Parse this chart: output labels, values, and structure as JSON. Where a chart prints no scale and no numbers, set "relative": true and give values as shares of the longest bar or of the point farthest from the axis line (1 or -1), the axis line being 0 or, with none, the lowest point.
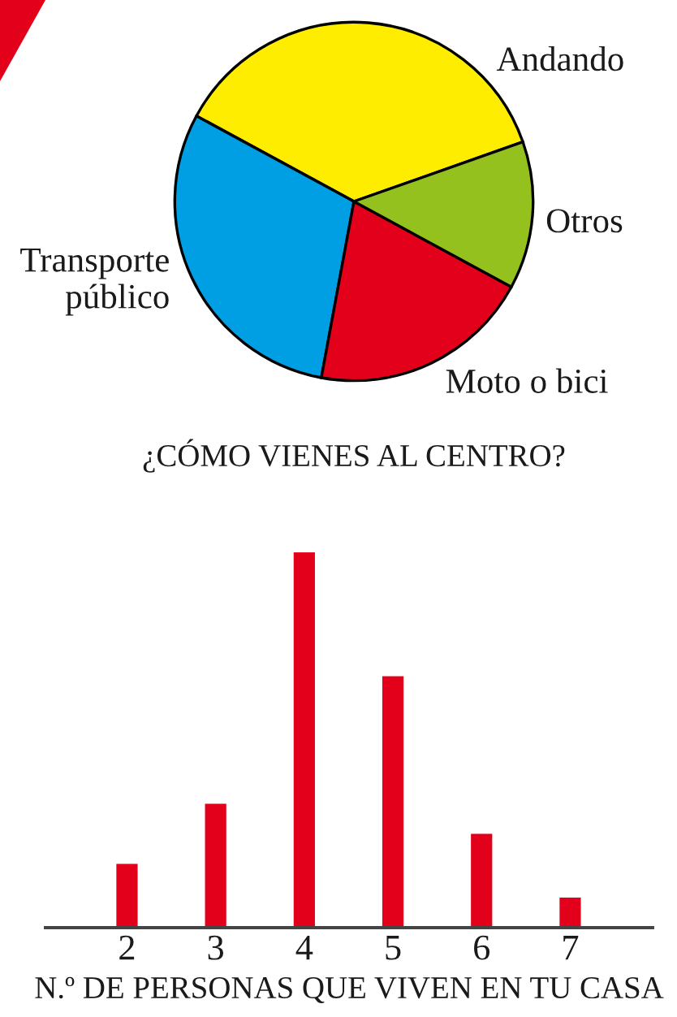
{
  "chart_data": [
    {
      "type": "pie",
      "title": "¿CÓMO VIENES AL CENTRO?",
      "categories": [
        "Andando",
        "Transporte público",
        "Moto o bici",
        "Otros"
      ],
      "values": [
        36.7,
        30,
        20,
        13.3
      ],
      "colors": [
        "#ffed00",
        "#009fe3",
        "#e2001a",
        "#95c11f"
      ]
    },
    {
      "type": "bar",
      "xlabel": "N.º DE PERSONAS QUE VIVEN EN TU CASA",
      "categories": [
        "2",
        "3",
        "4",
        "5",
        "6",
        "7"
      ],
      "values": [
        0.17,
        0.33,
        1,
        0.67,
        0.25,
        0.08
      ],
      "relative": true,
      "color": "#e2001a"
    }
  ]
}
